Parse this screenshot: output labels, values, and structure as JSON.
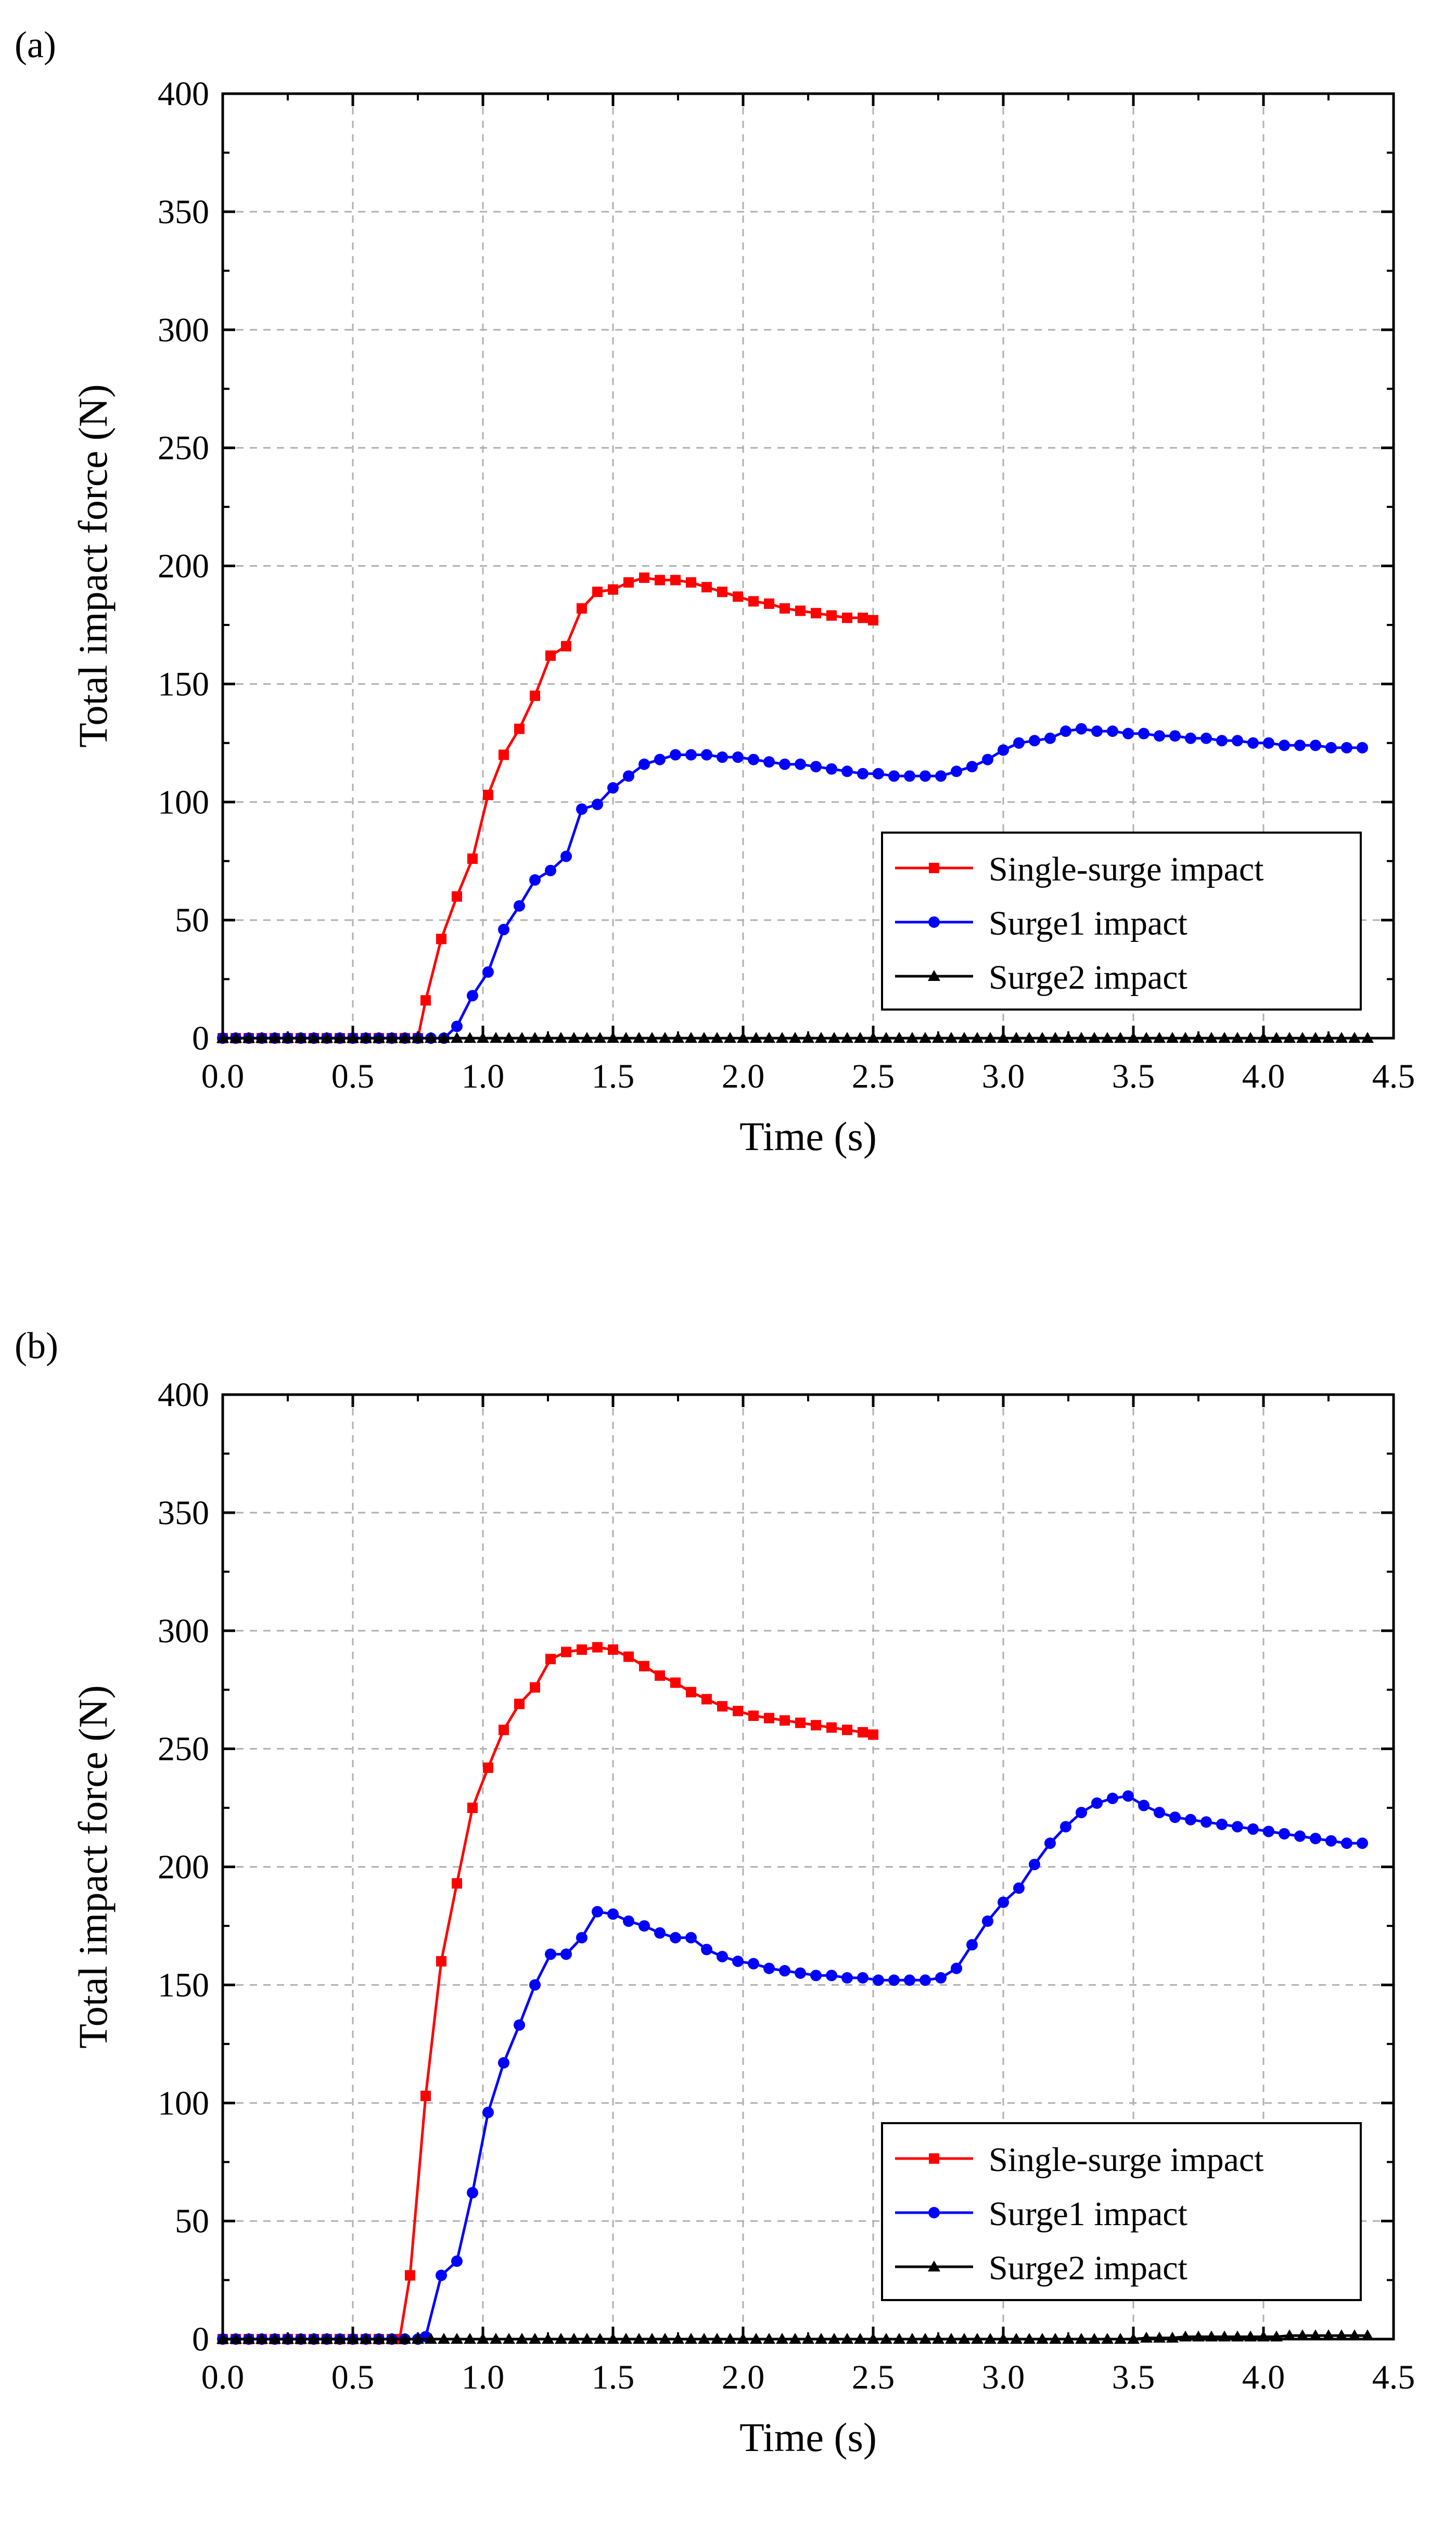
{
  "chart_data": [
    {
      "panel_label": "(a)",
      "type": "line",
      "xlabel": "Time (s)",
      "ylabel": "Total impact force (N)",
      "xlim": [
        0,
        4.5
      ],
      "ylim": [
        0,
        400
      ],
      "xticks": [
        "0.0",
        "0.5",
        "1.0",
        "1.5",
        "2.0",
        "2.5",
        "3.0",
        "3.5",
        "4.0",
        "4.5"
      ],
      "yticks": [
        "0",
        "50",
        "100",
        "150",
        "200",
        "250",
        "300",
        "350",
        "400"
      ],
      "grid": true,
      "legend_position": "lower-right",
      "series": [
        {
          "name": "Single-surge impact",
          "color": "#ff0000",
          "marker": "square",
          "x": [
            0,
            0.05,
            0.1,
            0.15,
            0.2,
            0.25,
            0.3,
            0.35,
            0.4,
            0.45,
            0.5,
            0.55,
            0.6,
            0.65,
            0.7,
            0.75,
            0.78,
            0.84,
            0.9,
            0.96,
            1.02,
            1.08,
            1.14,
            1.2,
            1.26,
            1.32,
            1.38,
            1.44,
            1.5,
            1.56,
            1.62,
            1.68,
            1.74,
            1.8,
            1.86,
            1.92,
            1.98,
            2.04,
            2.1,
            2.16,
            2.22,
            2.28,
            2.34,
            2.4,
            2.46,
            2.5
          ],
          "values": [
            0,
            0,
            0,
            0,
            0,
            0,
            0,
            0,
            0,
            0,
            0,
            0,
            0,
            0,
            0,
            0,
            16,
            42,
            60,
            76,
            103,
            120,
            131,
            145,
            162,
            166,
            182,
            189,
            190,
            193,
            195,
            194,
            194,
            193,
            191,
            189,
            187,
            185,
            184,
            182,
            181,
            180,
            179,
            178,
            178,
            177
          ]
        },
        {
          "name": "Surge1 impact",
          "color": "#0000ff",
          "marker": "circle",
          "x": [
            0,
            0.05,
            0.1,
            0.15,
            0.2,
            0.25,
            0.3,
            0.35,
            0.4,
            0.45,
            0.5,
            0.55,
            0.6,
            0.65,
            0.7,
            0.75,
            0.8,
            0.85,
            0.9,
            0.96,
            1.02,
            1.08,
            1.14,
            1.2,
            1.26,
            1.32,
            1.38,
            1.44,
            1.5,
            1.56,
            1.62,
            1.68,
            1.74,
            1.8,
            1.86,
            1.92,
            1.98,
            2.04,
            2.1,
            2.16,
            2.22,
            2.28,
            2.34,
            2.4,
            2.46,
            2.52,
            2.58,
            2.64,
            2.7,
            2.76,
            2.82,
            2.88,
            2.94,
            3.0,
            3.06,
            3.12,
            3.18,
            3.24,
            3.3,
            3.36,
            3.42,
            3.48,
            3.54,
            3.6,
            3.66,
            3.72,
            3.78,
            3.84,
            3.9,
            3.96,
            4.02,
            4.08,
            4.14,
            4.2,
            4.26,
            4.32,
            4.38
          ],
          "values": [
            0,
            0,
            0,
            0,
            0,
            0,
            0,
            0,
            0,
            0,
            0,
            0,
            0,
            0,
            0,
            0,
            0,
            0,
            5,
            18,
            28,
            46,
            56,
            67,
            71,
            77,
            97,
            99,
            106,
            111,
            116,
            118,
            120,
            120,
            120,
            119,
            119,
            118,
            117,
            116,
            116,
            115,
            114,
            113,
            112,
            112,
            111,
            111,
            111,
            111,
            113,
            115,
            118,
            122,
            125,
            126,
            127,
            130,
            131,
            130,
            130,
            129,
            129,
            128,
            128,
            127,
            127,
            126,
            126,
            125,
            125,
            124,
            124,
            124,
            123,
            123,
            123
          ]
        },
        {
          "name": "Surge2 impact",
          "color": "#000000",
          "marker": "triangle",
          "x": [
            0,
            0.05,
            0.1,
            0.15,
            0.2,
            0.25,
            0.3,
            0.35,
            0.4,
            0.45,
            0.5,
            0.55,
            0.6,
            0.65,
            0.7,
            0.75,
            0.8,
            0.85,
            0.9,
            0.95,
            1.0,
            1.05,
            1.1,
            1.15,
            1.2,
            1.25,
            1.3,
            1.35,
            1.4,
            1.45,
            1.5,
            1.55,
            1.6,
            1.65,
            1.7,
            1.75,
            1.8,
            1.85,
            1.9,
            1.95,
            2.0,
            2.05,
            2.1,
            2.15,
            2.2,
            2.25,
            2.3,
            2.35,
            2.4,
            2.45,
            2.5,
            2.55,
            2.6,
            2.65,
            2.7,
            2.75,
            2.8,
            2.85,
            2.9,
            2.95,
            3.0,
            3.05,
            3.1,
            3.15,
            3.2,
            3.25,
            3.3,
            3.35,
            3.4,
            3.45,
            3.5,
            3.55,
            3.6,
            3.65,
            3.7,
            3.75,
            3.8,
            3.85,
            3.9,
            3.95,
            4.0,
            4.05,
            4.1,
            4.15,
            4.2,
            4.25,
            4.3,
            4.35,
            4.4
          ],
          "values": [
            0,
            0,
            0,
            0,
            0,
            0,
            0,
            0,
            0,
            0,
            0,
            0,
            0,
            0,
            0,
            0,
            0,
            0,
            0,
            0,
            0,
            0,
            0,
            0,
            0,
            0,
            0,
            0,
            0,
            0,
            0,
            0,
            0,
            0,
            0,
            0,
            0,
            0,
            0,
            0,
            0,
            0,
            0,
            0,
            0,
            0,
            0,
            0,
            0,
            0,
            0,
            0,
            0,
            0,
            0,
            0,
            0,
            0,
            0,
            0,
            0,
            0,
            0,
            0,
            0,
            0,
            0,
            0,
            0,
            0,
            0,
            0,
            0,
            0,
            0,
            0,
            0,
            0,
            0,
            0,
            0,
            0,
            0,
            0,
            0,
            0,
            0,
            0,
            0
          ]
        }
      ]
    },
    {
      "panel_label": "(b)",
      "type": "line",
      "xlabel": "Time (s)",
      "ylabel": "Total impact force (N)",
      "xlim": [
        0,
        4.5
      ],
      "ylim": [
        0,
        400
      ],
      "xticks": [
        "0.0",
        "0.5",
        "1.0",
        "1.5",
        "2.0",
        "2.5",
        "3.0",
        "3.5",
        "4.0",
        "4.5"
      ],
      "yticks": [
        "0",
        "50",
        "100",
        "150",
        "200",
        "250",
        "300",
        "350",
        "400"
      ],
      "grid": true,
      "legend_position": "lower-right",
      "series": [
        {
          "name": "Single-surge impact",
          "color": "#ff0000",
          "marker": "square",
          "x": [
            0,
            0.05,
            0.1,
            0.15,
            0.2,
            0.25,
            0.3,
            0.35,
            0.4,
            0.45,
            0.5,
            0.55,
            0.6,
            0.65,
            0.68,
            0.72,
            0.78,
            0.84,
            0.9,
            0.96,
            1.02,
            1.08,
            1.14,
            1.2,
            1.26,
            1.32,
            1.38,
            1.44,
            1.5,
            1.56,
            1.62,
            1.68,
            1.74,
            1.8,
            1.86,
            1.92,
            1.98,
            2.04,
            2.1,
            2.16,
            2.22,
            2.28,
            2.34,
            2.4,
            2.46,
            2.5
          ],
          "values": [
            0,
            0,
            0,
            0,
            0,
            0,
            0,
            0,
            0,
            0,
            0,
            0,
            0,
            0,
            0,
            27,
            103,
            160,
            193,
            225,
            242,
            258,
            269,
            276,
            288,
            291,
            292,
            293,
            292,
            289,
            285,
            281,
            278,
            274,
            271,
            268,
            266,
            264,
            263,
            262,
            261,
            260,
            259,
            258,
            257,
            256
          ]
        },
        {
          "name": "Surge1 impact",
          "color": "#0000ff",
          "marker": "circle",
          "x": [
            0,
            0.05,
            0.1,
            0.15,
            0.2,
            0.25,
            0.3,
            0.35,
            0.4,
            0.45,
            0.5,
            0.55,
            0.6,
            0.65,
            0.7,
            0.75,
            0.78,
            0.84,
            0.9,
            0.96,
            1.02,
            1.08,
            1.14,
            1.2,
            1.26,
            1.32,
            1.38,
            1.44,
            1.5,
            1.56,
            1.62,
            1.68,
            1.74,
            1.8,
            1.86,
            1.92,
            1.98,
            2.04,
            2.1,
            2.16,
            2.22,
            2.28,
            2.34,
            2.4,
            2.46,
            2.52,
            2.58,
            2.64,
            2.7,
            2.76,
            2.82,
            2.88,
            2.94,
            3.0,
            3.06,
            3.12,
            3.18,
            3.24,
            3.3,
            3.36,
            3.42,
            3.48,
            3.54,
            3.6,
            3.66,
            3.72,
            3.78,
            3.84,
            3.9,
            3.96,
            4.02,
            4.08,
            4.14,
            4.2,
            4.26,
            4.32,
            4.38
          ],
          "values": [
            0,
            0,
            0,
            0,
            0,
            0,
            0,
            0,
            0,
            0,
            0,
            0,
            0,
            0,
            0,
            0,
            1,
            27,
            33,
            62,
            96,
            117,
            133,
            150,
            163,
            163,
            170,
            181,
            180,
            177,
            175,
            172,
            170,
            170,
            165,
            162,
            160,
            159,
            157,
            156,
            155,
            154,
            154,
            153,
            153,
            152,
            152,
            152,
            152,
            153,
            157,
            167,
            177,
            185,
            191,
            201,
            210,
            217,
            223,
            227,
            229,
            230,
            226,
            223,
            221,
            220,
            219,
            218,
            217,
            216,
            215,
            214,
            213,
            212,
            211,
            210,
            210
          ]
        },
        {
          "name": "Surge2 impact",
          "color": "#000000",
          "marker": "triangle",
          "x": [
            0,
            0.05,
            0.1,
            0.15,
            0.2,
            0.25,
            0.3,
            0.35,
            0.4,
            0.45,
            0.5,
            0.55,
            0.6,
            0.65,
            0.7,
            0.75,
            0.8,
            0.85,
            0.9,
            0.95,
            1.0,
            1.05,
            1.1,
            1.15,
            1.2,
            1.25,
            1.3,
            1.35,
            1.4,
            1.45,
            1.5,
            1.55,
            1.6,
            1.65,
            1.7,
            1.75,
            1.8,
            1.85,
            1.9,
            1.95,
            2.0,
            2.05,
            2.1,
            2.15,
            2.2,
            2.25,
            2.3,
            2.35,
            2.4,
            2.45,
            2.5,
            2.55,
            2.6,
            2.65,
            2.7,
            2.75,
            2.8,
            2.85,
            2.9,
            2.95,
            3.0,
            3.05,
            3.1,
            3.15,
            3.2,
            3.25,
            3.3,
            3.35,
            3.4,
            3.45,
            3.5,
            3.55,
            3.6,
            3.65,
            3.7,
            3.75,
            3.8,
            3.85,
            3.9,
            3.95,
            4.0,
            4.05,
            4.1,
            4.15,
            4.2,
            4.25,
            4.3,
            4.35,
            4.4
          ],
          "values": [
            0,
            0,
            0,
            0,
            0,
            0,
            0,
            0,
            0,
            0,
            0,
            0,
            0,
            0,
            0,
            0,
            0,
            0,
            0,
            0,
            0,
            0,
            0,
            0,
            0,
            0,
            0,
            0,
            0,
            0,
            0,
            0,
            0,
            0,
            0,
            0,
            0,
            0,
            0,
            0,
            0,
            0,
            0,
            0,
            0,
            0,
            0,
            0,
            0,
            0,
            0,
            0,
            0,
            0,
            0,
            0,
            0,
            0,
            0,
            0,
            0,
            0,
            0,
            0,
            0,
            0,
            0,
            0,
            0,
            0,
            0,
            0.5,
            0.5,
            0.5,
            1,
            1,
            1,
            1,
            1,
            1,
            1,
            1,
            1.5,
            1.5,
            1.5,
            1.5,
            1.5,
            1.5,
            1.5
          ]
        }
      ]
    }
  ]
}
